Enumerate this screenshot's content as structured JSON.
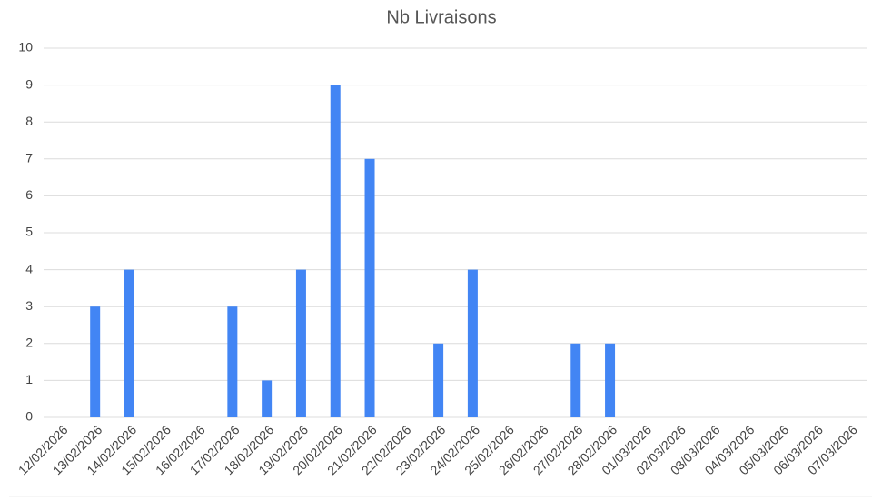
{
  "chart_data": {
    "type": "bar",
    "title": "Nb Livraisons",
    "categories": [
      "12/02/2026",
      "13/02/2026",
      "14/02/2026",
      "15/02/2026",
      "16/02/2026",
      "17/02/2026",
      "18/02/2026",
      "19/02/2026",
      "20/02/2026",
      "21/02/2026",
      "22/02/2026",
      "23/02/2026",
      "24/02/2026",
      "25/02/2026",
      "26/02/2026",
      "27/02/2026",
      "28/02/2026",
      "01/03/2026",
      "02/03/2026",
      "03/03/2026",
      "04/03/2026",
      "05/03/2026",
      "06/03/2026",
      "07/03/2026"
    ],
    "values": [
      0,
      3,
      4,
      0,
      0,
      3,
      1,
      4,
      9,
      7,
      0,
      2,
      4,
      0,
      0,
      2,
      2,
      0,
      0,
      0,
      0,
      0,
      0,
      0
    ],
    "color": "#4285f4",
    "ylim": [
      0,
      10
    ],
    "yticks": [
      0,
      1,
      2,
      3,
      4,
      5,
      6,
      7,
      8,
      9,
      10
    ],
    "grid": true
  }
}
